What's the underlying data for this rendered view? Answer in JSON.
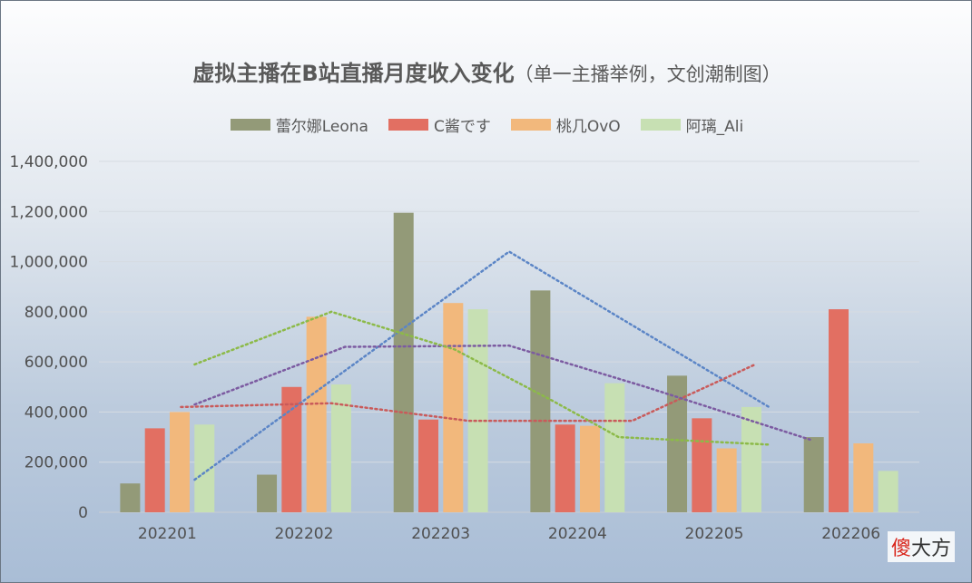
{
  "chart_data": {
    "type": "bar",
    "title": "虚拟主播在B站直播月度收入变化",
    "subtitle": "（单一主播举例，文创潮制图）",
    "categories": [
      "202201",
      "202202",
      "202203",
      "202204",
      "202205",
      "202206"
    ],
    "ylim": [
      0,
      1400000
    ],
    "yticks": [
      0,
      200000,
      400000,
      600000,
      800000,
      1000000,
      1200000,
      1400000
    ],
    "ytick_labels": [
      "0",
      "200,000",
      "400,000",
      "600,000",
      "800,000",
      "1,000,000",
      "1,200,000",
      "1,400,000"
    ],
    "grid": true,
    "legend_position": "top",
    "series": [
      {
        "name": "蕾尔娜Leona",
        "color": "#939a78",
        "values": [
          115000,
          150000,
          1195000,
          885000,
          545000,
          300000
        ]
      },
      {
        "name": "C酱です",
        "color": "#e26f62",
        "values": [
          335000,
          500000,
          370000,
          350000,
          375000,
          810000
        ]
      },
      {
        "name": "桃几OvO",
        "color": "#f2b87c",
        "values": [
          400000,
          780000,
          835000,
          345000,
          255000,
          275000
        ]
      },
      {
        "name": "阿璃_Ali",
        "color": "#c7e0b3",
        "values": [
          350000,
          510000,
          810000,
          515000,
          420000,
          165000
        ]
      }
    ],
    "trendlines": [
      {
        "color": "#5b85c6",
        "points": [
          [
            1.2,
            130000
          ],
          [
            3.5,
            1040000
          ],
          [
            5.4,
            420000
          ]
        ]
      },
      {
        "color": "#c95a5a",
        "points": [
          [
            1.1,
            420000
          ],
          [
            2.2,
            435000
          ],
          [
            3.2,
            365000
          ],
          [
            4.4,
            365000
          ],
          [
            5.3,
            590000
          ]
        ]
      },
      {
        "color": "#7c5ba1",
        "points": [
          [
            1.2,
            430000
          ],
          [
            2.3,
            660000
          ],
          [
            3.5,
            665000
          ],
          [
            4.5,
            500000
          ],
          [
            5.7,
            290000
          ]
        ]
      },
      {
        "color": "#8cba48",
        "points": [
          [
            1.2,
            590000
          ],
          [
            2.2,
            800000
          ],
          [
            3.1,
            650000
          ],
          [
            3.8,
            450000
          ],
          [
            4.3,
            300000
          ],
          [
            5.4,
            270000
          ]
        ]
      }
    ]
  },
  "watermark": {
    "red": "傻",
    "rest": "大方"
  }
}
